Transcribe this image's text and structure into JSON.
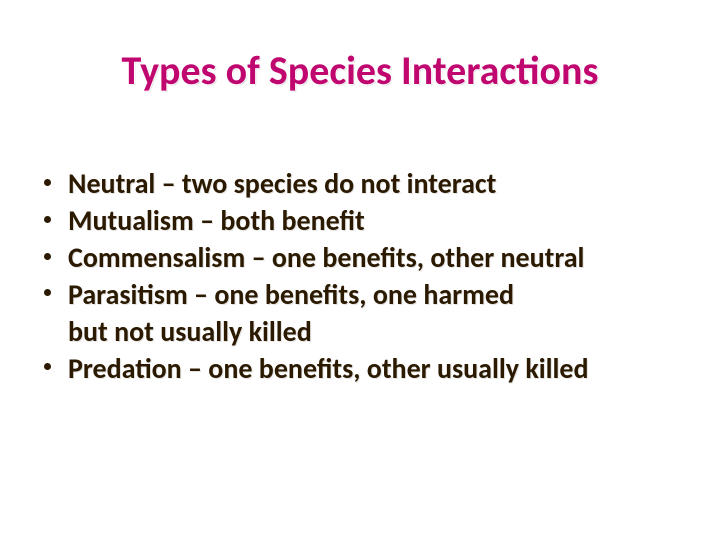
{
  "title": "Types of Species Interactions",
  "title_color": "#c0066f",
  "text_color": "#2b1a00",
  "background_color": "#ffffff",
  "title_fontsize": 40,
  "body_fontsize": 28,
  "bullets": [
    {
      "text": "Neutral – two species do not interact",
      "is_continuation": false
    },
    {
      "text": "Mutualism – both benefit",
      "is_continuation": false
    },
    {
      "text": "Commensalism – one benefits, other neutral",
      "is_continuation": false
    },
    {
      "text": "Parasitism – one benefits, one harmed",
      "is_continuation": false
    },
    {
      "text": "but not usually killed",
      "is_continuation": true
    },
    {
      "text": "Predation – one benefits, other usually killed",
      "is_continuation": false
    }
  ]
}
